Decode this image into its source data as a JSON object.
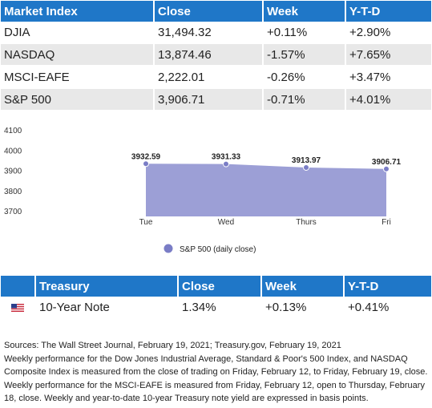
{
  "market_table": {
    "headers": [
      "Market Index",
      "Close",
      "Week",
      "Y-T-D"
    ],
    "rows": [
      [
        "DJIA",
        "31,494.32",
        "+0.11%",
        "+2.90%"
      ],
      [
        "NASDAQ",
        "13,874.46",
        "-1.57%",
        "+7.65%"
      ],
      [
        "MSCI-EAFE",
        "2,222.01",
        "-0.26%",
        "+3.47%"
      ],
      [
        "S&P 500",
        "3,906.71",
        "-0.71%",
        "+4.01%"
      ]
    ]
  },
  "chart_data": {
    "type": "area",
    "categories": [
      "Tue",
      "Wed",
      "Thurs",
      "Fri"
    ],
    "series": [
      {
        "name": "S&P 500 (daily close)",
        "values": [
          3932.59,
          3931.33,
          3913.97,
          3906.71
        ]
      }
    ],
    "data_labels": [
      "3932.59",
      "3931.33",
      "3913.97",
      "3906.71"
    ],
    "y_ticks": [
      "4100",
      "4000",
      "3900",
      "3800",
      "3700"
    ],
    "ylim": [
      3660,
      4110
    ],
    "grid": false,
    "legend": "bottom-center",
    "fill_color": "#9c9fd6",
    "point_color": "#7a7dc6"
  },
  "treasury_table": {
    "headers": [
      "",
      "Treasury",
      "Close",
      "Week",
      "Y-T-D"
    ],
    "row": [
      "10-Year Note",
      "1.34%",
      "+0.13%",
      "+0.41%"
    ],
    "icon": "us-flag-icon"
  },
  "notes": [
    "Sources: The Wall Street Journal, February 19, 2021; Treasury.gov, February 19, 2021",
    "Weekly performance for the Dow Jones Industrial Average, Standard & Poor's 500 Index, and NASDAQ Composite Index is measured from the close of trading on Friday, February 12, to Friday, February 19, close. Weekly performance for the MSCI-EAFE is measured from Friday, February 12, open to Thursday, February 18, close. Weekly and year-to-date 10-year Treasury note yield are expressed in basis points."
  ]
}
